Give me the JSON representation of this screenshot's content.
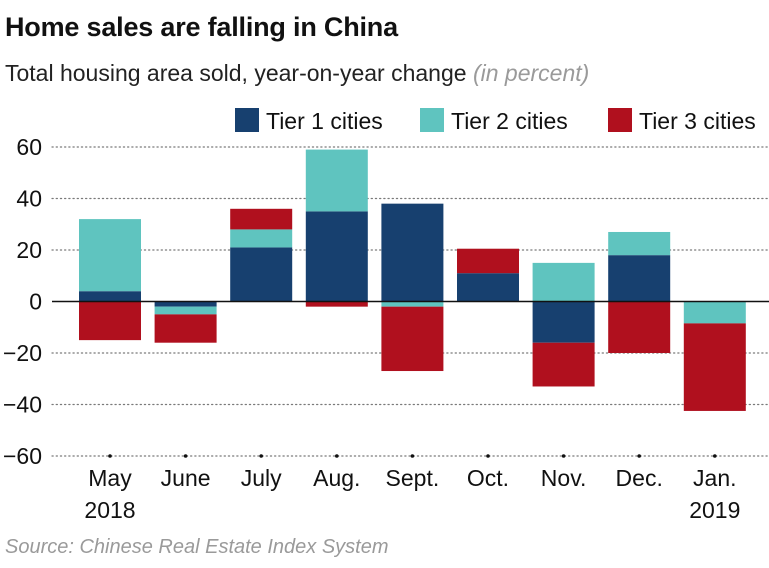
{
  "header": {
    "title": "Home sales are falling in China",
    "subtitle": "Total housing area sold, year-on-year change",
    "unit": "(in percent)"
  },
  "source": "Source: Chinese Real Estate Index System",
  "chart_data": {
    "type": "bar",
    "stacked": true,
    "categories": [
      [
        "May",
        "2018"
      ],
      [
        "June"
      ],
      [
        "July"
      ],
      [
        "Aug."
      ],
      [
        "Sept."
      ],
      [
        "Oct."
      ],
      [
        "Nov."
      ],
      [
        "Dec."
      ],
      [
        "Jan.",
        "2019"
      ]
    ],
    "series": [
      {
        "name": "Tier 1 cities",
        "color": "#17406f",
        "values": [
          4,
          -2,
          21,
          35,
          38,
          11,
          -16,
          18,
          0
        ]
      },
      {
        "name": "Tier 2 cities",
        "color": "#5fc4bf",
        "values": [
          28,
          -3,
          7,
          24,
          -2,
          0,
          15,
          9,
          -8.5
        ]
      },
      {
        "name": "Tier 3 cities",
        "color": "#b0101e",
        "values": [
          -15,
          -11,
          8,
          -2,
          -25,
          9.5,
          -17,
          -20,
          -34
        ]
      }
    ],
    "ylim": [
      -60,
      60
    ],
    "yticks": [
      60,
      40,
      20,
      0,
      -20,
      -40,
      -60
    ],
    "ytick_labels": [
      "60",
      "40",
      "20",
      "0",
      "−20",
      "−40",
      "−60"
    ],
    "grid": true,
    "legend_position": "top-right"
  }
}
